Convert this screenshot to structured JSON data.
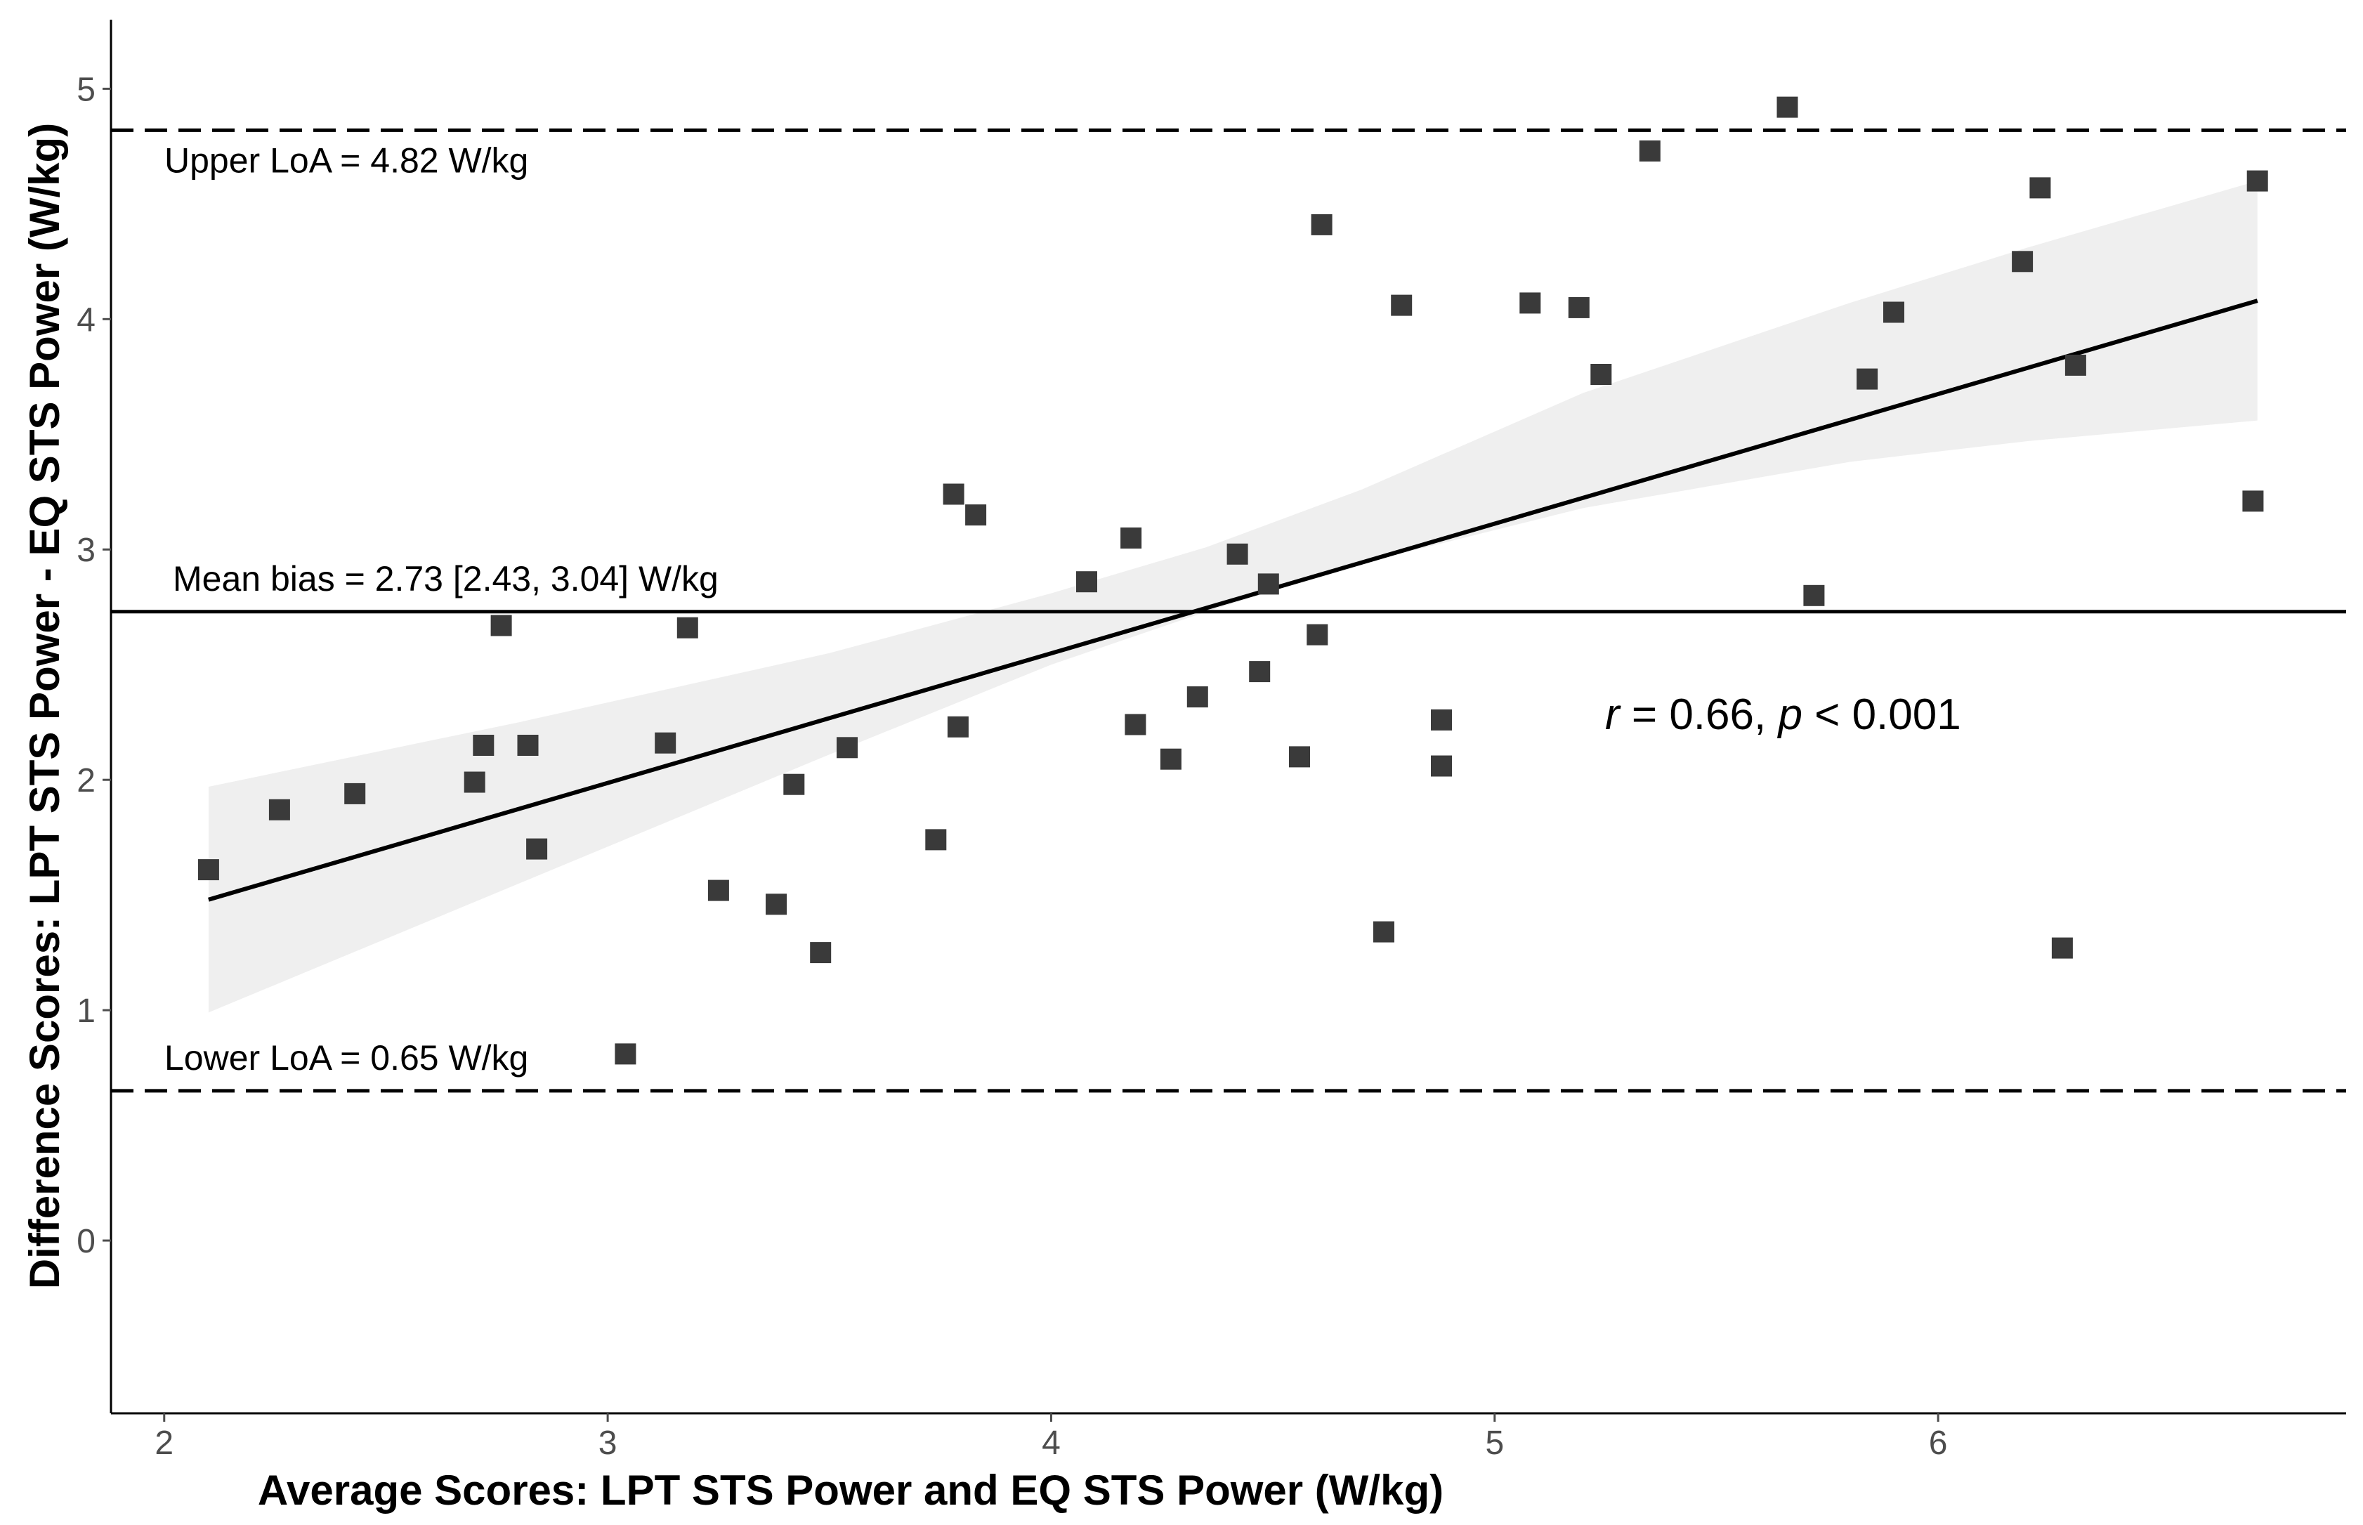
{
  "chart_data": {
    "type": "scatter",
    "title": "",
    "xlabel": "Average Scores: LPT STS Power and EQ STS Power (W/kg)",
    "ylabel": "Difference Scores: LPT STS Power - EQ STS Power (W/kg)",
    "xlim": [
      1.88,
      6.92
    ],
    "ylim": [
      -0.75,
      5.3
    ],
    "x_ticks": [
      2,
      3,
      4,
      5,
      6
    ],
    "y_ticks": [
      0,
      1,
      2,
      3,
      4,
      5
    ],
    "grid": false,
    "points": [
      [
        2.1,
        1.61
      ],
      [
        2.26,
        1.87
      ],
      [
        2.43,
        1.94
      ],
      [
        2.7,
        1.99
      ],
      [
        2.72,
        2.15
      ],
      [
        2.76,
        2.67
      ],
      [
        2.82,
        2.15
      ],
      [
        2.84,
        1.7
      ],
      [
        3.04,
        0.81
      ],
      [
        3.13,
        2.16
      ],
      [
        3.18,
        2.66
      ],
      [
        3.25,
        1.52
      ],
      [
        3.38,
        1.46
      ],
      [
        3.42,
        1.98
      ],
      [
        3.48,
        1.25
      ],
      [
        3.54,
        2.14
      ],
      [
        3.74,
        1.74
      ],
      [
        3.78,
        3.24
      ],
      [
        3.79,
        2.23
      ],
      [
        3.83,
        3.15
      ],
      [
        4.08,
        2.86
      ],
      [
        4.18,
        3.05
      ],
      [
        4.19,
        2.24
      ],
      [
        4.27,
        2.09
      ],
      [
        4.33,
        2.36
      ],
      [
        4.42,
        2.98
      ],
      [
        4.47,
        2.47
      ],
      [
        4.49,
        2.85
      ],
      [
        4.56,
        2.1
      ],
      [
        4.6,
        2.63
      ],
      [
        4.61,
        4.41
      ],
      [
        4.75,
        1.34
      ],
      [
        4.79,
        4.06
      ],
      [
        4.88,
        2.26
      ],
      [
        4.88,
        2.06
      ],
      [
        5.08,
        4.07
      ],
      [
        5.19,
        4.05
      ],
      [
        5.24,
        3.76
      ],
      [
        5.35,
        4.73
      ],
      [
        5.66,
        4.92
      ],
      [
        5.72,
        2.8
      ],
      [
        5.84,
        3.74
      ],
      [
        5.9,
        4.03
      ],
      [
        6.19,
        4.25
      ],
      [
        6.23,
        4.57
      ],
      [
        6.28,
        1.27
      ],
      [
        6.31,
        3.8
      ],
      [
        6.71,
        3.21
      ],
      [
        6.72,
        4.6
      ]
    ],
    "regression": {
      "x": [
        2.1,
        6.72
      ],
      "y": [
        1.48,
        4.08
      ]
    },
    "confidence_band": {
      "x": [
        2.1,
        2.8,
        3.5,
        4.0,
        4.35,
        4.7,
        5.2,
        5.8,
        6.2,
        6.72
      ],
      "lower": [
        0.99,
        1.55,
        2.11,
        2.5,
        2.73,
        2.94,
        3.18,
        3.38,
        3.47,
        3.56
      ],
      "upper": [
        1.97,
        2.25,
        2.55,
        2.81,
        3.01,
        3.26,
        3.68,
        4.07,
        4.31,
        4.6
      ]
    },
    "reference_lines": [
      {
        "name": "upper-loa",
        "y": 4.82,
        "style": "dashed",
        "label": "Upper LoA = 4.82 W/kg"
      },
      {
        "name": "mean-bias",
        "y": 2.73,
        "style": "solid",
        "label": "Mean bias = 2.73 [2.43, 3.04] W/kg"
      },
      {
        "name": "lower-loa",
        "y": 0.65,
        "style": "dashed",
        "label": "Lower LoA = 0.65 W/kg"
      }
    ],
    "correlation": {
      "r_symbol": "r",
      "r_text": " = 0.66, ",
      "p_symbol": "p",
      "p_text": " < 0.001"
    },
    "colors": {
      "points": "#3a3a3a",
      "band": "#efefef",
      "lines": "#000000",
      "axis": "#000000",
      "ticks": "#4d4d4d"
    }
  }
}
